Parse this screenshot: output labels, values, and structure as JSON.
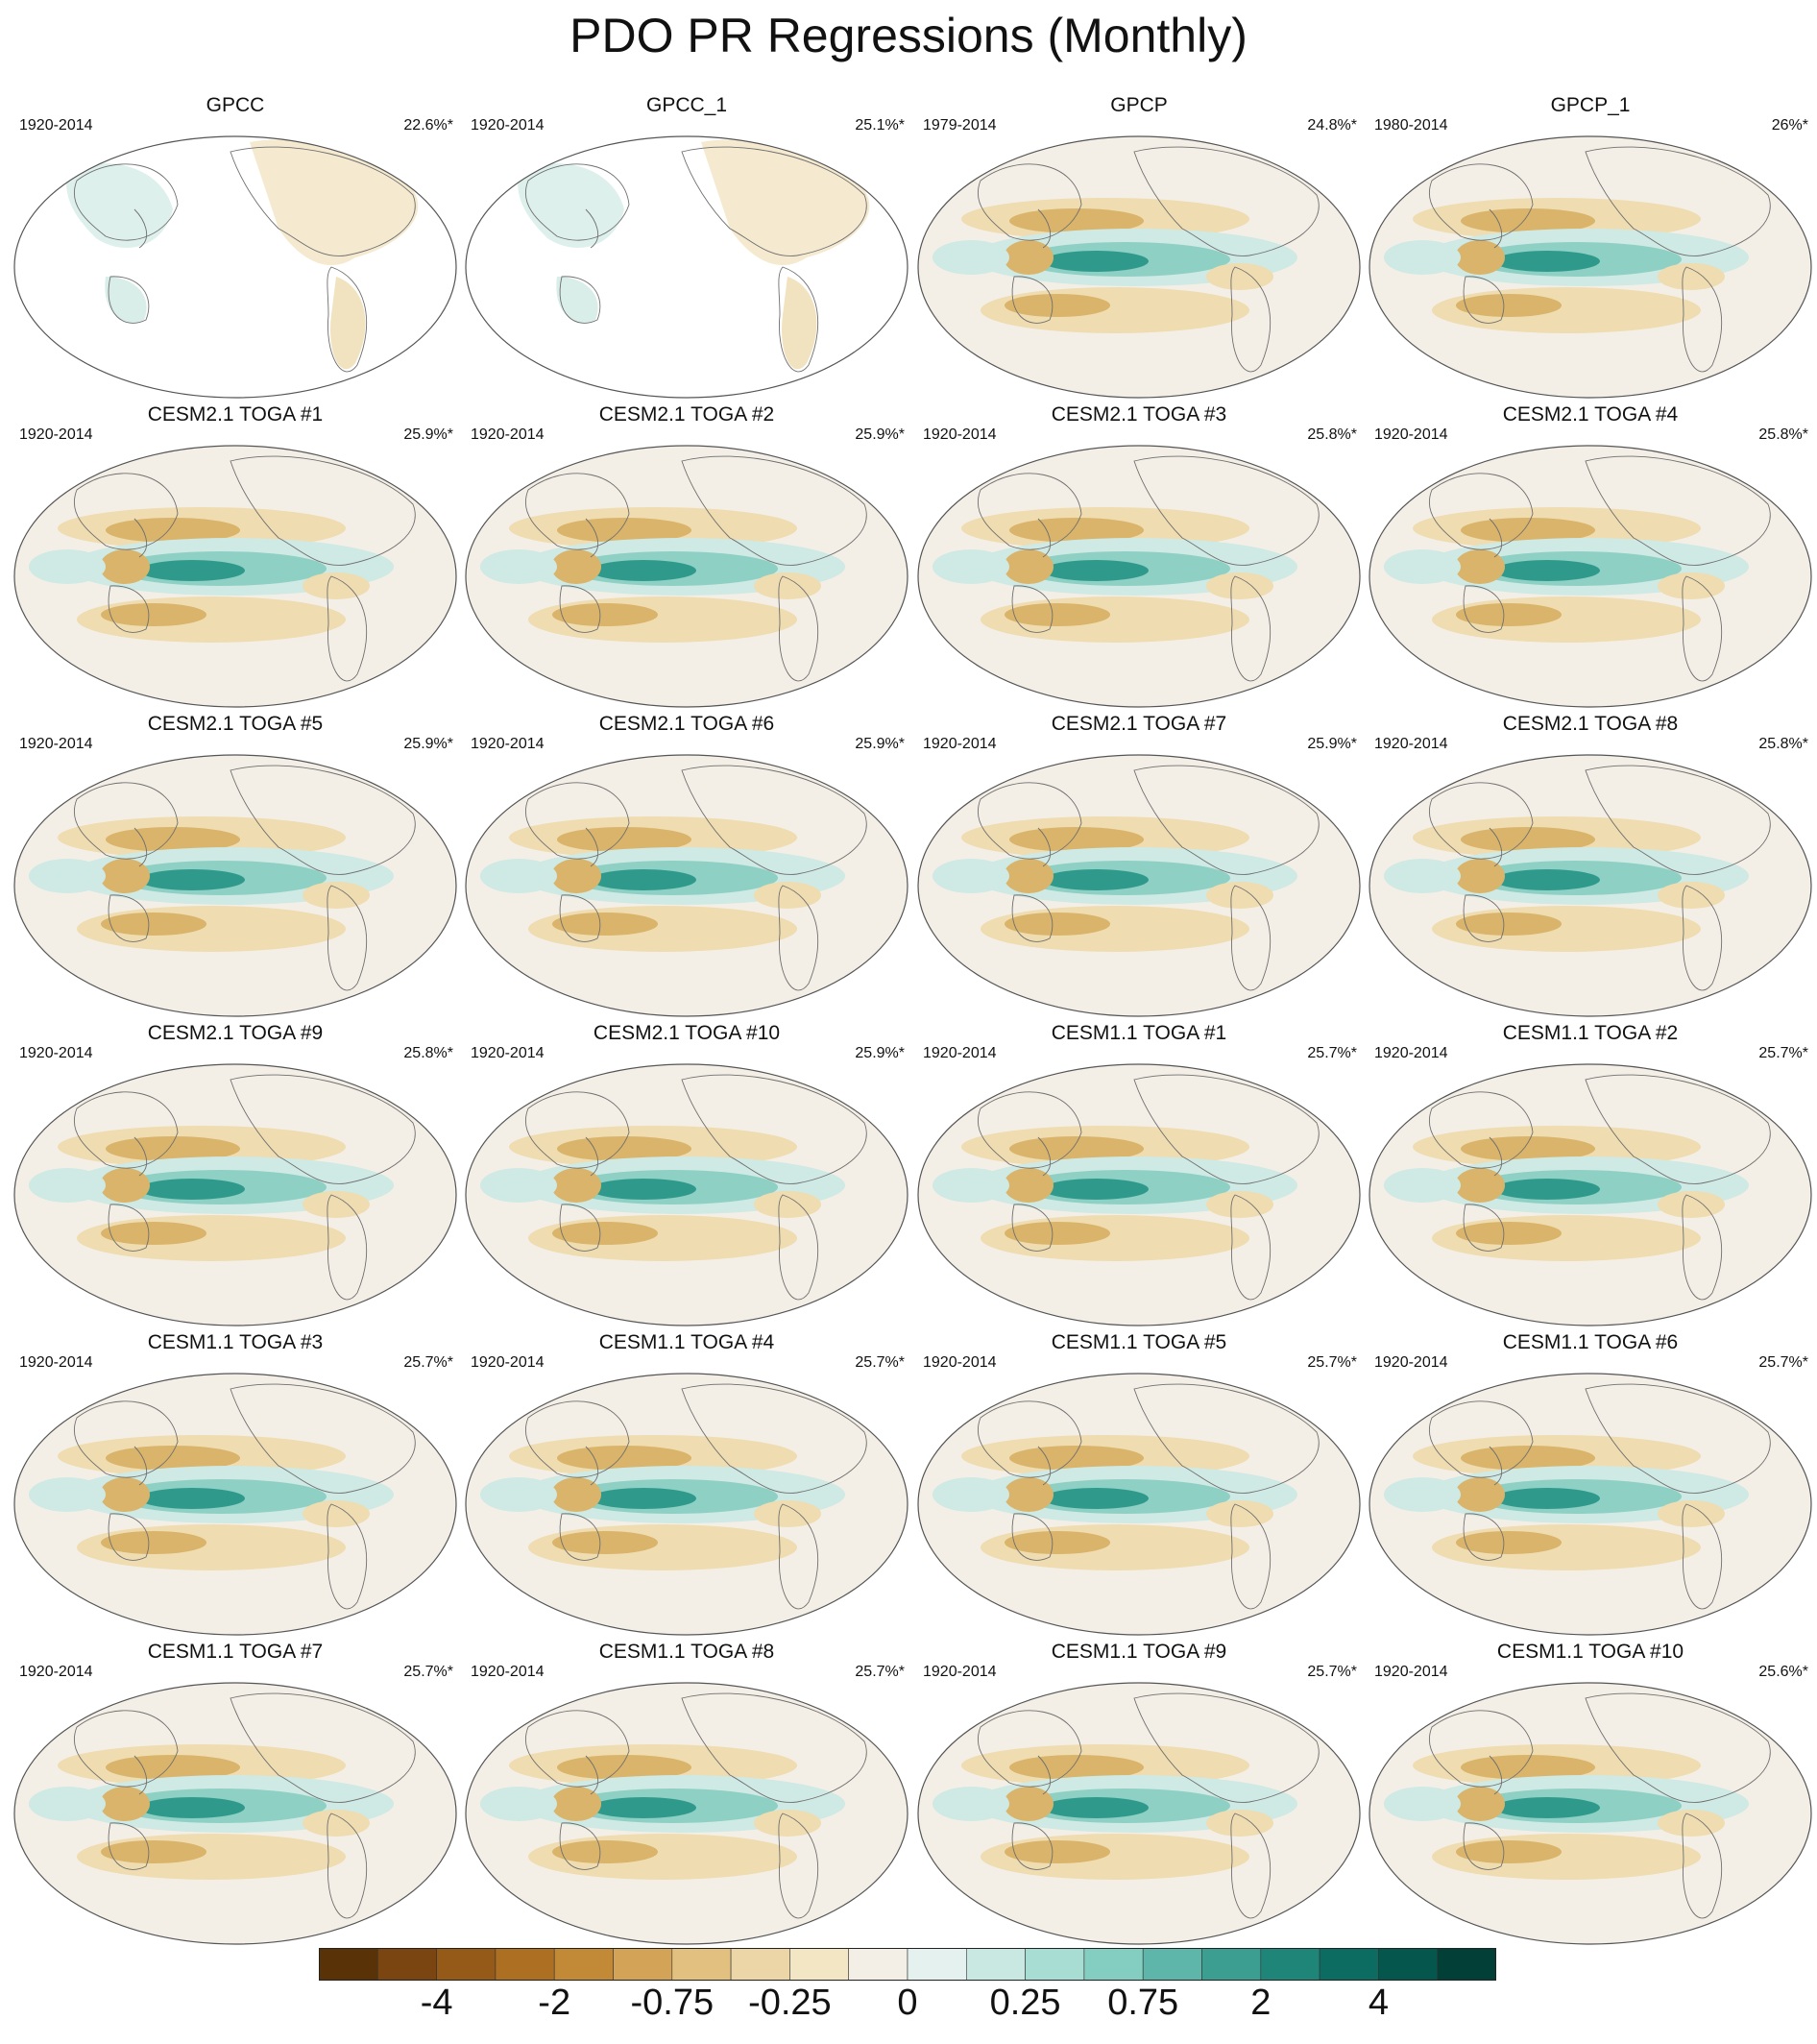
{
  "title": "PDO PR Regressions (Monthly)",
  "colors": {
    "land_mask": "#ffffff",
    "background": "#f4efe6",
    "coast": "#6f6f6f",
    "neg_strong": "#8a5a1a",
    "neg": "#d9b46a",
    "neg_weak": "#efdcb0",
    "pos_weak": "#cfe9e4",
    "pos": "#8fd0c4",
    "pos_strong": "#2f9a8c"
  },
  "panels": [
    {
      "title": "GPCC",
      "period": "1920-2014",
      "pct": "22.6%*",
      "land_only": true
    },
    {
      "title": "GPCC_1",
      "period": "1920-2014",
      "pct": "25.1%*",
      "land_only": true
    },
    {
      "title": "GPCP",
      "period": "1979-2014",
      "pct": "24.8%*",
      "land_only": false
    },
    {
      "title": "GPCP_1",
      "period": "1980-2014",
      "pct": "26%*",
      "land_only": false
    },
    {
      "title": "CESM2.1 TOGA #1",
      "period": "1920-2014",
      "pct": "25.9%*",
      "land_only": false
    },
    {
      "title": "CESM2.1 TOGA #2",
      "period": "1920-2014",
      "pct": "25.9%*",
      "land_only": false
    },
    {
      "title": "CESM2.1 TOGA #3",
      "period": "1920-2014",
      "pct": "25.8%*",
      "land_only": false
    },
    {
      "title": "CESM2.1 TOGA #4",
      "period": "1920-2014",
      "pct": "25.8%*",
      "land_only": false
    },
    {
      "title": "CESM2.1 TOGA #5",
      "period": "1920-2014",
      "pct": "25.9%*",
      "land_only": false
    },
    {
      "title": "CESM2.1 TOGA #6",
      "period": "1920-2014",
      "pct": "25.9%*",
      "land_only": false
    },
    {
      "title": "CESM2.1 TOGA #7",
      "period": "1920-2014",
      "pct": "25.9%*",
      "land_only": false
    },
    {
      "title": "CESM2.1 TOGA #8",
      "period": "1920-2014",
      "pct": "25.8%*",
      "land_only": false
    },
    {
      "title": "CESM2.1 TOGA #9",
      "period": "1920-2014",
      "pct": "25.8%*",
      "land_only": false
    },
    {
      "title": "CESM2.1 TOGA #10",
      "period": "1920-2014",
      "pct": "25.9%*",
      "land_only": false
    },
    {
      "title": "CESM1.1 TOGA #1",
      "period": "1920-2014",
      "pct": "25.7%*",
      "land_only": false
    },
    {
      "title": "CESM1.1 TOGA #2",
      "period": "1920-2014",
      "pct": "25.7%*",
      "land_only": false
    },
    {
      "title": "CESM1.1 TOGA #3",
      "period": "1920-2014",
      "pct": "25.7%*",
      "land_only": false
    },
    {
      "title": "CESM1.1 TOGA #4",
      "period": "1920-2014",
      "pct": "25.7%*",
      "land_only": false
    },
    {
      "title": "CESM1.1 TOGA #5",
      "period": "1920-2014",
      "pct": "25.7%*",
      "land_only": false
    },
    {
      "title": "CESM1.1 TOGA #6",
      "period": "1920-2014",
      "pct": "25.7%*",
      "land_only": false
    },
    {
      "title": "CESM1.1 TOGA #7",
      "period": "1920-2014",
      "pct": "25.7%*",
      "land_only": false
    },
    {
      "title": "CESM1.1 TOGA #8",
      "period": "1920-2014",
      "pct": "25.7%*",
      "land_only": false
    },
    {
      "title": "CESM1.1 TOGA #9",
      "period": "1920-2014",
      "pct": "25.7%*",
      "land_only": false
    },
    {
      "title": "CESM1.1 TOGA #10",
      "period": "1920-2014",
      "pct": "25.6%*",
      "land_only": false
    }
  ],
  "colorbar": {
    "colors": [
      "#5a3208",
      "#7a4510",
      "#955a17",
      "#ad6f22",
      "#c28a37",
      "#d3a458",
      "#e2c07f",
      "#ecd6a8",
      "#f3e6c5",
      "#f4efe6",
      "#e5f1ee",
      "#c9e8e2",
      "#a8ddd4",
      "#84cdc1",
      "#5db6a9",
      "#3c9e91",
      "#1f8579",
      "#0c6c61",
      "#05564c",
      "#013f37"
    ],
    "labels": [
      "-4",
      "-2",
      "-0.75",
      "-0.25",
      "0",
      "0.25",
      "0.75",
      "2",
      "4"
    ]
  }
}
